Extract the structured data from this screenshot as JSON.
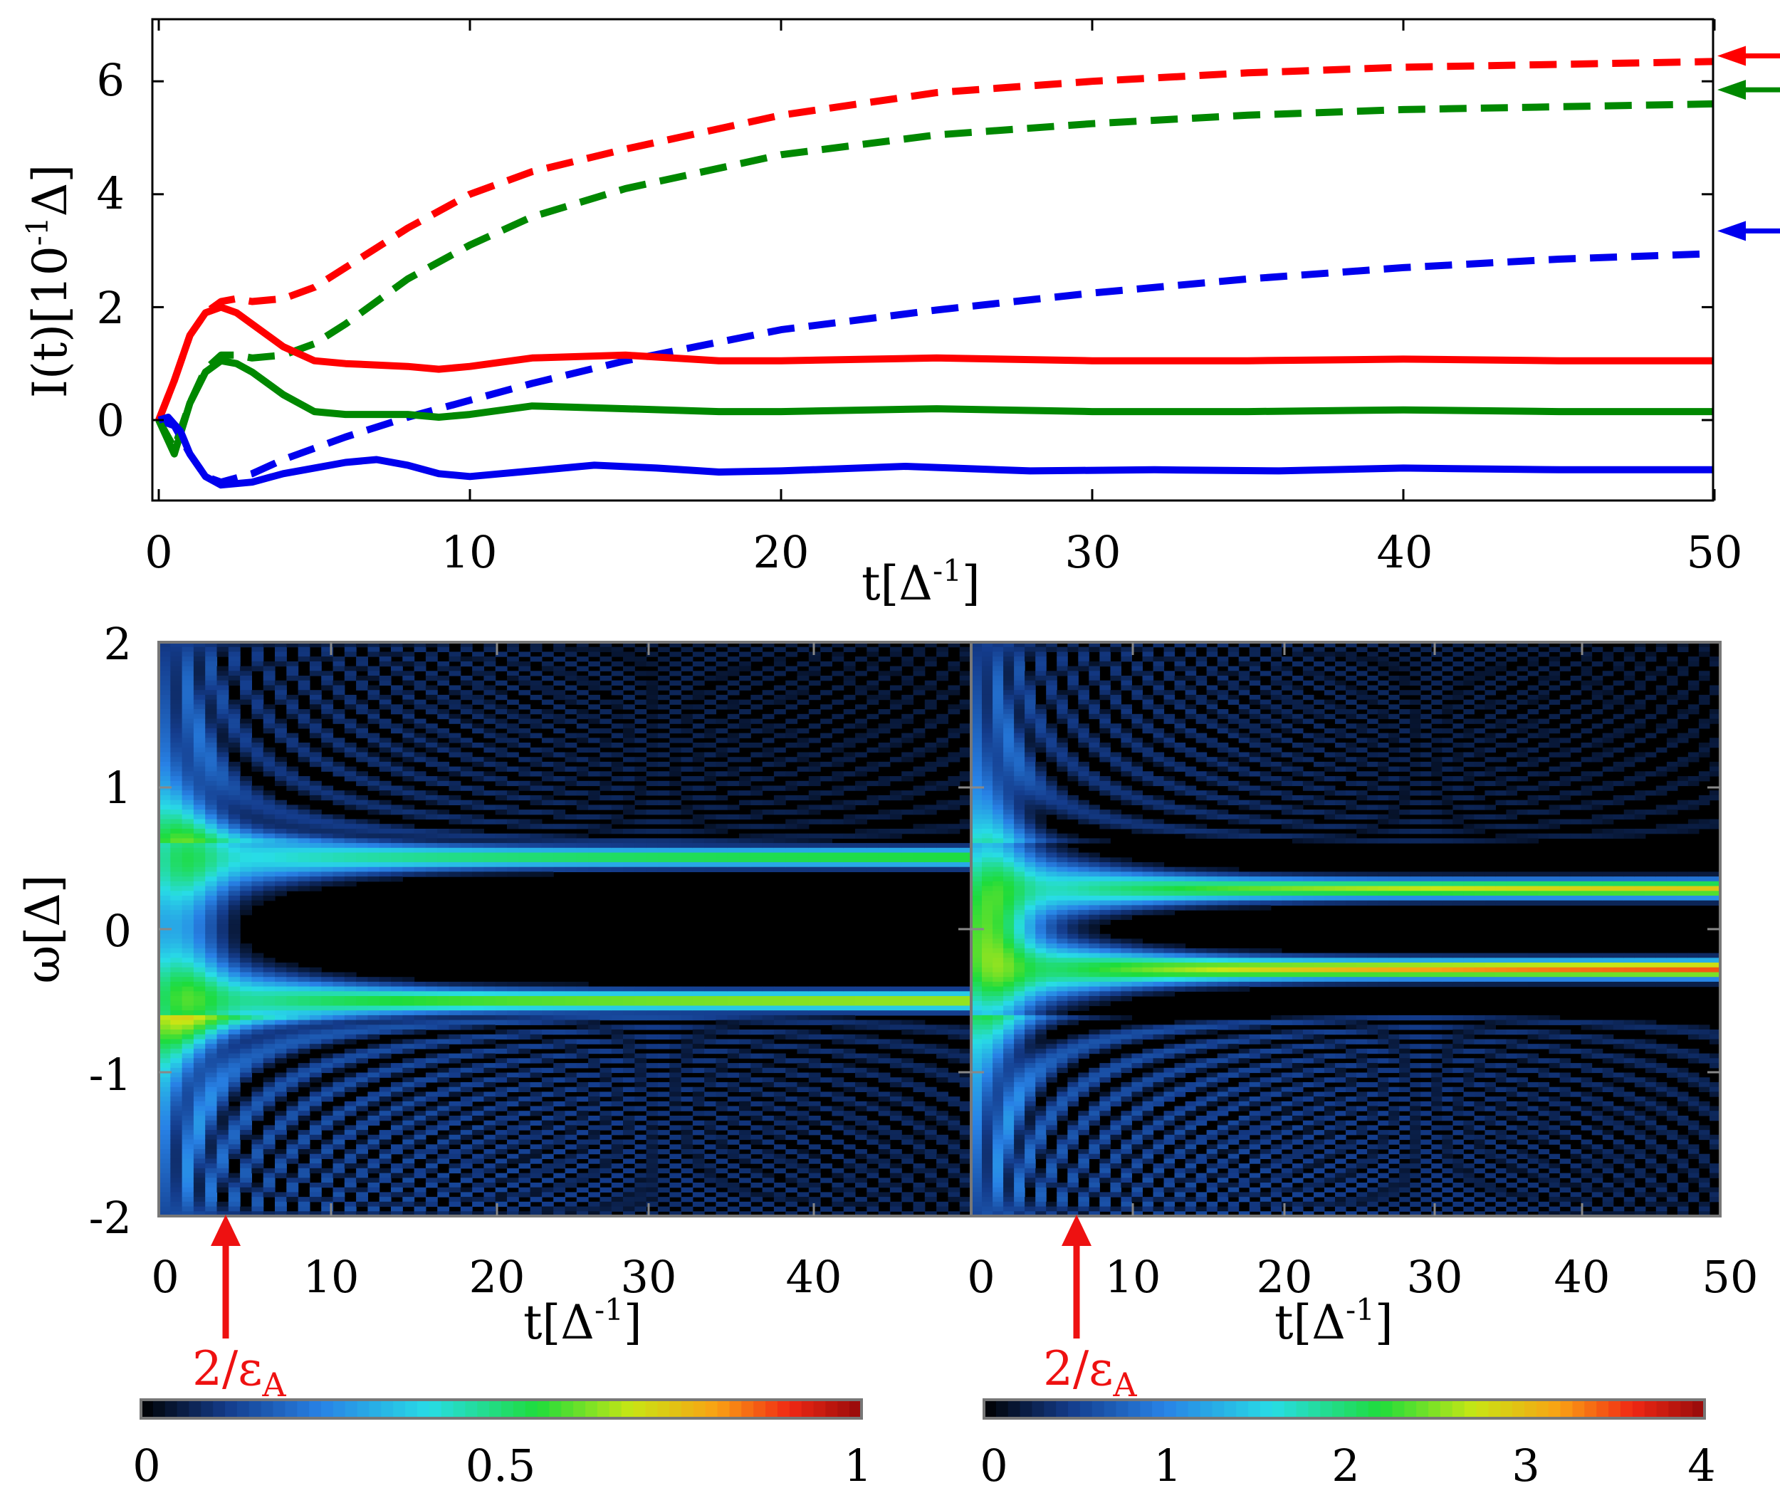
{
  "chart_data": [
    {
      "type": "line",
      "panel": "top",
      "xlabel_main": "t[Δ",
      "xlabel_sup": "-1",
      "xlabel_tail": "]",
      "ylabel_main": "I(t)[10",
      "ylabel_sup": "-1",
      "ylabel_tail": "Δ]",
      "xlim": [
        0,
        50
      ],
      "ylim": [
        -1.5,
        7
      ],
      "xticks": [
        "0",
        "10",
        "20",
        "30",
        "40",
        "50"
      ],
      "yticks": [
        "0",
        "2",
        "4",
        "6"
      ],
      "series": [
        {
          "name": "red dashed",
          "color": "#ff0000",
          "style": "dashed",
          "x": [
            0,
            0.5,
            1,
            1.5,
            2,
            2.5,
            3,
            4,
            5,
            6,
            8,
            10,
            12,
            15,
            20,
            25,
            30,
            35,
            40,
            45,
            50
          ],
          "y": [
            0,
            0.7,
            1.5,
            1.9,
            2.1,
            2.15,
            2.1,
            2.15,
            2.35,
            2.7,
            3.4,
            4.0,
            4.4,
            4.8,
            5.4,
            5.8,
            6.0,
            6.15,
            6.25,
            6.3,
            6.35
          ]
        },
        {
          "name": "green dashed",
          "color": "#008800",
          "style": "dashed",
          "x": [
            0,
            0.5,
            1,
            1.5,
            2,
            2.5,
            3,
            4,
            5,
            6,
            8,
            10,
            12,
            15,
            20,
            25,
            30,
            35,
            40,
            45,
            50
          ],
          "y": [
            0,
            -0.5,
            0.3,
            0.9,
            1.15,
            1.15,
            1.1,
            1.15,
            1.35,
            1.7,
            2.5,
            3.1,
            3.6,
            4.1,
            4.7,
            5.05,
            5.25,
            5.4,
            5.5,
            5.55,
            5.6
          ]
        },
        {
          "name": "blue dashed",
          "color": "#0000ee",
          "style": "dashed",
          "x": [
            0,
            0.5,
            1,
            1.5,
            2,
            3,
            4,
            6,
            8,
            10,
            12,
            15,
            20,
            25,
            30,
            35,
            40,
            45,
            50
          ],
          "y": [
            0,
            -0.1,
            -0.6,
            -1.0,
            -1.1,
            -0.95,
            -0.7,
            -0.3,
            0.05,
            0.35,
            0.65,
            1.05,
            1.6,
            1.95,
            2.25,
            2.5,
            2.7,
            2.85,
            2.95
          ]
        },
        {
          "name": "red solid",
          "color": "#ff0000",
          "style": "solid",
          "x": [
            0,
            0.5,
            1,
            1.5,
            2,
            2.5,
            3,
            4,
            5,
            6,
            8,
            9,
            10,
            12,
            15,
            18,
            20,
            25,
            30,
            35,
            40,
            45,
            50
          ],
          "y": [
            0,
            0.7,
            1.5,
            1.9,
            2.0,
            1.9,
            1.7,
            1.3,
            1.05,
            1.0,
            0.95,
            0.9,
            0.95,
            1.1,
            1.15,
            1.05,
            1.05,
            1.1,
            1.05,
            1.05,
            1.08,
            1.05,
            1.05
          ]
        },
        {
          "name": "green solid",
          "color": "#008800",
          "style": "solid",
          "x": [
            0,
            0.5,
            1,
            1.5,
            2,
            2.5,
            3,
            4,
            5,
            6,
            8,
            9,
            10,
            12,
            15,
            18,
            20,
            25,
            30,
            35,
            40,
            45,
            50
          ],
          "y": [
            0,
            -0.6,
            0.3,
            0.85,
            1.05,
            1.0,
            0.85,
            0.45,
            0.15,
            0.1,
            0.1,
            0.05,
            0.1,
            0.25,
            0.2,
            0.15,
            0.15,
            0.2,
            0.15,
            0.15,
            0.18,
            0.15,
            0.15
          ]
        },
        {
          "name": "blue solid",
          "color": "#0000ee",
          "style": "solid",
          "x": [
            0,
            0.3,
            0.7,
            1,
            1.5,
            2,
            3,
            4,
            5,
            6,
            7,
            8,
            9,
            10,
            11,
            12,
            14,
            16,
            18,
            20,
            24,
            28,
            32,
            36,
            40,
            45,
            50
          ],
          "y": [
            0,
            0.05,
            -0.2,
            -0.6,
            -1.0,
            -1.15,
            -1.1,
            -0.95,
            -0.85,
            -0.75,
            -0.7,
            -0.8,
            -0.95,
            -1.0,
            -0.95,
            -0.9,
            -0.8,
            -0.85,
            -0.92,
            -0.9,
            -0.82,
            -0.9,
            -0.88,
            -0.9,
            -0.85,
            -0.88,
            -0.88
          ]
        }
      ],
      "asymptote_arrows": [
        {
          "color": "#ff0000",
          "y": 6.45
        },
        {
          "color": "#008800",
          "y": 5.85
        },
        {
          "color": "#0000ee",
          "y": 3.35
        }
      ]
    },
    {
      "type": "heatmap",
      "panel": "bottom-left",
      "xlabel_main": "t[Δ",
      "xlabel_sup": "-1",
      "xlabel_tail": "]",
      "ylabel": "ω[Δ]",
      "xlim": [
        0,
        49
      ],
      "ylim": [
        -2,
        2
      ],
      "xticks": [
        "0",
        "10",
        "20",
        "30",
        "40"
      ],
      "yticks": [
        "2",
        "1",
        "0",
        "-1",
        "-2"
      ],
      "bands_omega": [
        0.5,
        -0.5
      ],
      "peak_value": 0.7,
      "annotation_main": "2/ε",
      "annotation_sub": "A",
      "annotation_t": 4,
      "colorbar_range": [
        0,
        1
      ],
      "colorbar_ticks": [
        "0",
        "0.5",
        "1"
      ]
    },
    {
      "type": "heatmap",
      "panel": "bottom-right",
      "xlabel_main": "t[Δ",
      "xlabel_sup": "-1",
      "xlabel_tail": "]",
      "xlim": [
        0,
        50
      ],
      "ylim": [
        -2,
        2
      ],
      "xticks": [
        "0",
        "10",
        "20",
        "30",
        "40",
        "50"
      ],
      "bands_omega": [
        0.28,
        -0.28
      ],
      "peak_value": 3.6,
      "annotation_main": "2/ε",
      "annotation_sub": "A",
      "annotation_t": 6.5,
      "colorbar_range": [
        0,
        4
      ],
      "colorbar_ticks": [
        "0",
        "1",
        "2",
        "3",
        "4"
      ]
    }
  ]
}
